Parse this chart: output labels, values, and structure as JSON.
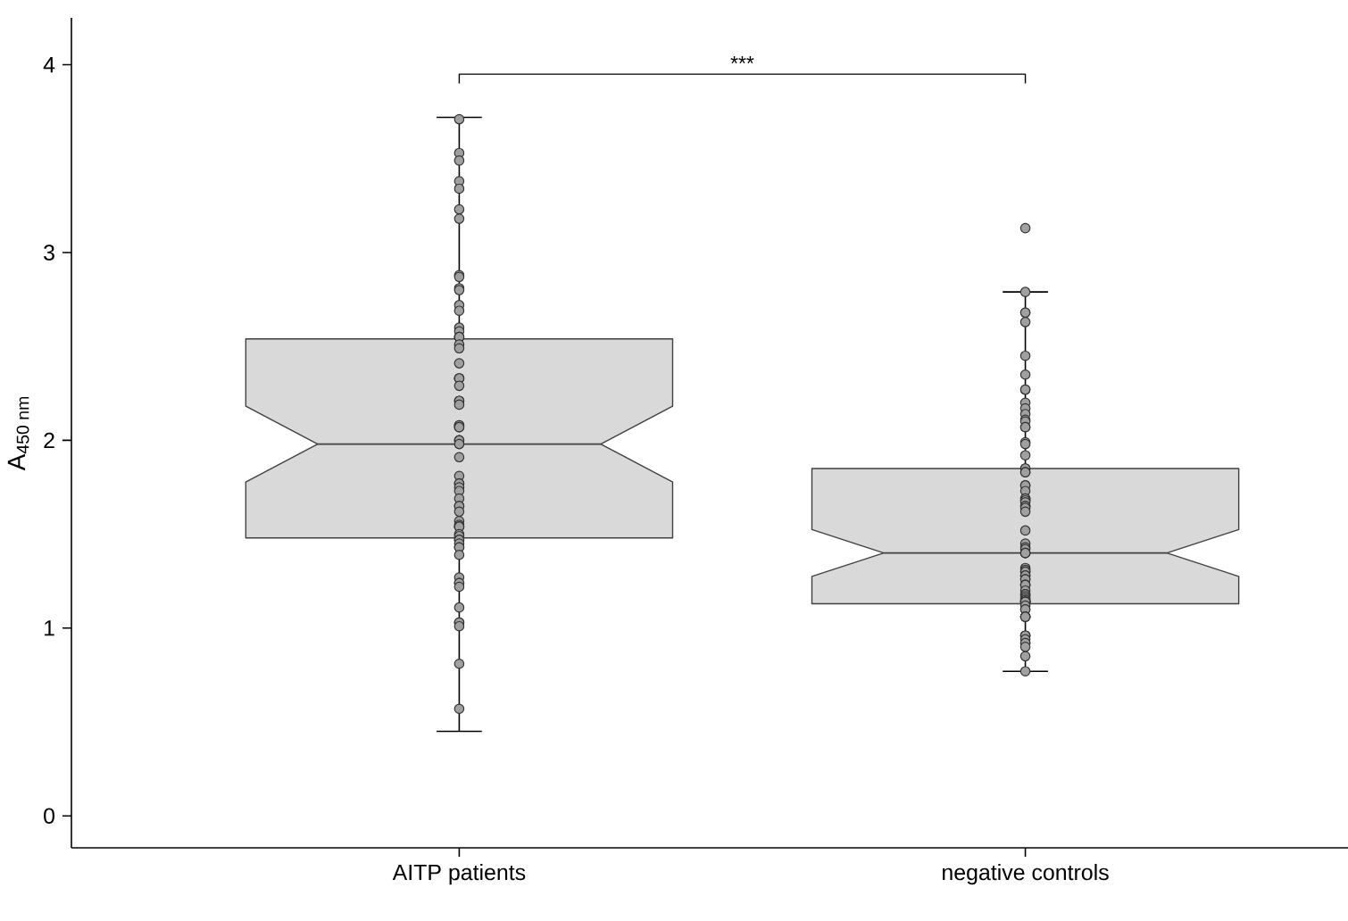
{
  "chart_data": {
    "type": "box",
    "ylabel": "A$_{450 nm}$",
    "categories": [
      "AITP patients",
      "negative controls"
    ],
    "ylim": [
      -0.17,
      4.25
    ],
    "yticks": [
      0,
      1,
      2,
      3,
      4
    ],
    "grid": false,
    "color": "#d9d9d9",
    "boxes": [
      {
        "low": 0.45,
        "q1": 1.48,
        "median": 1.98,
        "q3": 2.54,
        "high": 3.72
      },
      {
        "low": 0.77,
        "q1": 1.13,
        "median": 1.4,
        "q3": 1.85,
        "high": 2.79
      }
    ],
    "annotations": [
      "***"
    ],
    "series": [
      {
        "type": "scatter",
        "color": "#a0a0a0",
        "marker": "circle",
        "x": [
          "AITP patients",
          "AITP patients",
          "AITP patients",
          "AITP patients",
          "AITP patients",
          "AITP patients",
          "AITP patients",
          "AITP patients",
          "AITP patients",
          "AITP patients",
          "AITP patients",
          "AITP patients",
          "AITP patients",
          "AITP patients",
          "AITP patients",
          "AITP patients",
          "AITP patients",
          "AITP patients",
          "AITP patients",
          "AITP patients",
          "AITP patients",
          "AITP patients",
          "AITP patients",
          "AITP patients",
          "AITP patients",
          "AITP patients",
          "AITP patients",
          "AITP patients",
          "AITP patients",
          "AITP patients",
          "AITP patients",
          "AITP patients",
          "AITP patients",
          "AITP patients",
          "AITP patients",
          "AITP patients",
          "AITP patients",
          "AITP patients",
          "AITP patients",
          "AITP patients",
          "AITP patients",
          "AITP patients",
          "AITP patients",
          "AITP patients",
          "AITP patients",
          "AITP patients",
          "AITP patients",
          "AITP patients",
          "AITP patients",
          "AITP patients",
          "AITP patients",
          "AITP patients",
          "AITP patients",
          "AITP patients",
          "AITP patients",
          "AITP patients",
          "AITP patients",
          "AITP patients",
          "AITP patients",
          "AITP patients",
          "AITP patients",
          "AITP patients",
          "AITP patients",
          "AITP patients",
          "AITP patients",
          "AITP patients",
          "AITP patients",
          "AITP patients"
        ],
        "values": [
          3.71,
          3.53,
          3.49,
          3.38,
          3.34,
          3.23,
          3.18,
          2.88,
          2.87,
          2.81,
          2.8,
          2.72,
          2.69,
          2.6,
          2.58,
          2.55,
          2.55,
          2.55,
          2.51,
          2.49,
          2.41,
          2.33,
          2.33,
          2.33,
          2.29,
          2.21,
          2.21,
          2.19,
          2.08,
          2.08,
          2.07,
          2.07,
          2.0,
          2.0,
          1.98,
          1.91,
          1.81,
          1.77,
          1.77,
          1.75,
          1.73,
          1.69,
          1.65,
          1.65,
          1.62,
          1.57,
          1.55,
          1.54,
          1.54,
          1.54,
          1.5,
          1.49,
          1.47,
          1.47,
          1.45,
          1.43,
          1.43,
          1.39,
          1.27,
          1.24,
          1.24,
          1.22,
          1.11,
          1.03,
          1.03,
          1.01,
          0.81,
          0.57
        ]
      },
      {
        "type": "scatter",
        "color": "#a0a0a0",
        "marker": "circle",
        "x": [
          "negative controls",
          "negative controls",
          "negative controls",
          "negative controls",
          "negative controls",
          "negative controls",
          "negative controls",
          "negative controls",
          "negative controls",
          "negative controls",
          "negative controls",
          "negative controls",
          "negative controls",
          "negative controls",
          "negative controls",
          "negative controls",
          "negative controls",
          "negative controls",
          "negative controls",
          "negative controls",
          "negative controls",
          "negative controls",
          "negative controls",
          "negative controls",
          "negative controls",
          "negative controls",
          "negative controls",
          "negative controls",
          "negative controls",
          "negative controls",
          "negative controls",
          "negative controls",
          "negative controls",
          "negative controls",
          "negative controls",
          "negative controls",
          "negative controls",
          "negative controls",
          "negative controls",
          "negative controls",
          "negative controls",
          "negative controls",
          "negative controls",
          "negative controls",
          "negative controls",
          "negative controls",
          "negative controls",
          "negative controls",
          "negative controls",
          "negative controls",
          "negative controls",
          "negative controls",
          "negative controls",
          "negative controls",
          "negative controls",
          "negative controls",
          "negative controls",
          "negative controls",
          "negative controls",
          "negative controls",
          "negative controls",
          "negative controls",
          "negative controls",
          "negative controls",
          "negative controls",
          "negative controls",
          "negative controls",
          "negative controls",
          "negative controls",
          "negative controls",
          "negative controls",
          "negative controls",
          "negative controls",
          "negative controls",
          "negative controls",
          "negative controls",
          "negative controls",
          "negative controls",
          "negative controls",
          "negative controls",
          "negative controls",
          "negative controls"
        ],
        "values": [
          3.13,
          2.79,
          2.68,
          2.68,
          2.63,
          2.45,
          2.35,
          2.27,
          2.27,
          2.2,
          2.17,
          2.14,
          2.11,
          2.1,
          2.07,
          2.07,
          1.99,
          1.98,
          1.92,
          1.85,
          1.85,
          1.83,
          1.83,
          1.76,
          1.76,
          1.73,
          1.69,
          1.69,
          1.68,
          1.68,
          1.67,
          1.65,
          1.65,
          1.64,
          1.62,
          1.52,
          1.45,
          1.43,
          1.42,
          1.4,
          1.4,
          1.4,
          1.32,
          1.31,
          1.3,
          1.3,
          1.28,
          1.28,
          1.26,
          1.26,
          1.23,
          1.23,
          1.23,
          1.2,
          1.18,
          1.18,
          1.17,
          1.16,
          1.15,
          1.15,
          1.14,
          1.14,
          1.14,
          1.14,
          1.14,
          1.14,
          1.12,
          1.1,
          1.1,
          1.06,
          1.06,
          1.06,
          1.06,
          0.96,
          0.96,
          0.96,
          0.94,
          0.92,
          0.92,
          0.9,
          0.85,
          0.77
        ]
      }
    ]
  }
}
